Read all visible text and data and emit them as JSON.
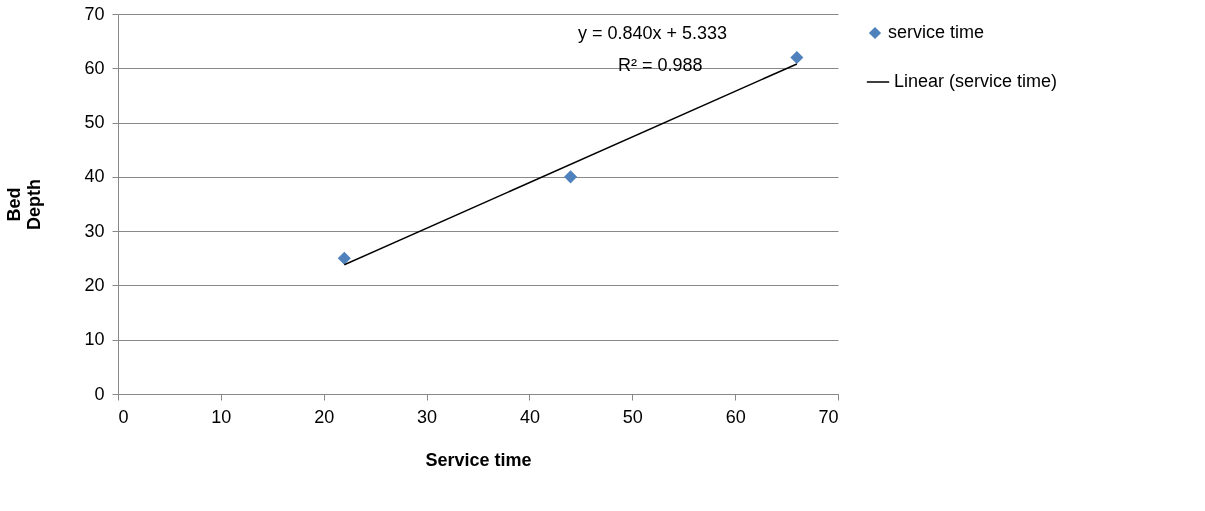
{
  "chart_data": {
    "type": "scatter",
    "xlabel": "Service time",
    "ylabel": "Bed Depth",
    "x": [
      22,
      44,
      66
    ],
    "series": [
      {
        "name": "service time",
        "color": "#4f81bd",
        "values": [
          25,
          40,
          62
        ],
        "marker": "diamond"
      },
      {
        "name": "Linear (service time)",
        "type": "line",
        "color": "#000000",
        "x": [
          22,
          66
        ],
        "values": [
          23.8,
          60.8
        ],
        "line_style": "solid"
      }
    ],
    "annotations": [
      "y = 0.840x + 5.333",
      "R² = 0.988"
    ],
    "xlim": [
      0,
      70
    ],
    "xticks": [
      0,
      10,
      20,
      30,
      40,
      50,
      60,
      70
    ],
    "ylim": [
      0,
      70
    ],
    "yticks": [
      0,
      10,
      20,
      30,
      40,
      50,
      60,
      70
    ],
    "grid": "y",
    "legend": "right"
  }
}
